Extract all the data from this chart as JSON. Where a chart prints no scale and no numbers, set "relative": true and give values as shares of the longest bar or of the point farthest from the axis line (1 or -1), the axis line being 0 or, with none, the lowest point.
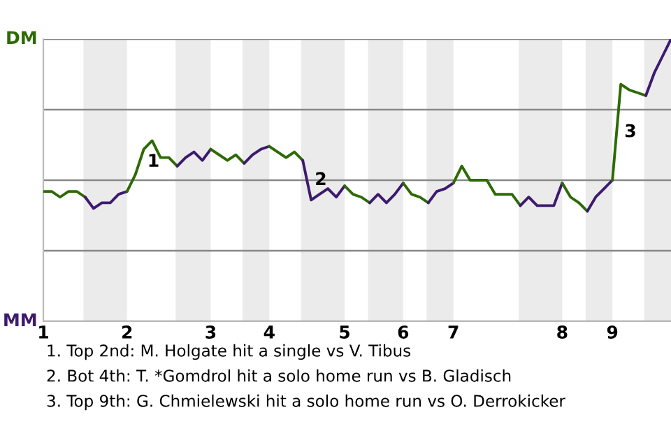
{
  "chart_data": {
    "type": "line",
    "relative": true,
    "categories": [
      "1",
      null,
      null,
      null,
      null,
      null,
      null,
      null,
      null,
      null,
      "2",
      null,
      null,
      null,
      null,
      null,
      null,
      null,
      null,
      null,
      "3",
      null,
      null,
      null,
      null,
      null,
      null,
      "4",
      null,
      null,
      null,
      null,
      null,
      null,
      null,
      null,
      "5",
      null,
      null,
      null,
      null,
      null,
      null,
      "6",
      null,
      null,
      null,
      null,
      null,
      "7",
      null,
      null,
      null,
      null,
      null,
      null,
      null,
      null,
      null,
      null,
      null,
      null,
      "8",
      null,
      null,
      null,
      null,
      null,
      "9",
      null,
      null,
      null,
      null,
      null,
      null,
      null
    ],
    "series": [
      {
        "color": "#2d6a04",
        "values": [
          0.46,
          0.46,
          0.44,
          0.46,
          0.46,
          0.44,
          null,
          null,
          null,
          null,
          null,
          null,
          null,
          null,
          null,
          null,
          null,
          null,
          null,
          null,
          null,
          null,
          null,
          null,
          null,
          null,
          null,
          null,
          null,
          null,
          null,
          null,
          null,
          null,
          null,
          null,
          null,
          null,
          null,
          null,
          null,
          null,
          null,
          null,
          null,
          null,
          null,
          null,
          null,
          null,
          null,
          null,
          null,
          null,
          null,
          null,
          null,
          null,
          null,
          null,
          null,
          null,
          null,
          null,
          null,
          null,
          null,
          null,
          null,
          null,
          null,
          null,
          null,
          null,
          null,
          null
        ]
      },
      {
        "color": "#3d1a6e",
        "values": [
          null,
          null,
          null,
          null,
          null,
          0.44,
          0.4,
          0.42,
          0.42,
          0.45,
          0.46,
          null,
          null,
          null,
          null,
          null,
          null,
          null,
          null,
          null,
          null,
          null,
          null,
          null,
          null,
          null,
          null,
          null,
          null,
          null,
          null,
          null,
          null,
          null,
          null,
          null,
          null,
          null,
          null,
          null,
          null,
          null,
          null,
          null,
          null,
          null,
          null,
          null,
          null,
          null,
          null,
          null,
          null,
          null,
          null,
          null,
          null,
          null,
          null,
          null,
          null,
          null,
          null,
          null,
          null,
          null,
          null,
          null,
          null,
          null,
          null,
          null,
          null,
          null,
          null,
          null
        ]
      },
      {
        "color": "#2d6a04",
        "values": [
          null,
          null,
          null,
          null,
          null,
          null,
          null,
          null,
          null,
          null,
          0.46,
          0.52,
          0.61,
          0.64,
          0.58,
          0.58,
          0.55,
          null,
          null,
          null,
          null,
          null,
          null,
          null,
          null,
          null,
          null,
          null,
          null,
          null,
          null,
          null,
          null,
          null,
          null,
          null,
          null,
          null,
          null,
          null,
          null,
          null,
          null,
          null,
          null,
          null,
          null,
          null,
          null,
          null,
          null,
          null,
          null,
          null,
          null,
          null,
          null,
          null,
          null,
          null,
          null,
          null,
          null,
          null,
          null,
          null,
          null,
          null,
          null,
          null,
          null,
          null,
          null,
          null,
          null,
          null
        ]
      },
      {
        "color": "#3d1a6e",
        "values": [
          null,
          null,
          null,
          null,
          null,
          null,
          null,
          null,
          null,
          null,
          null,
          null,
          null,
          null,
          null,
          null,
          0.55,
          0.58,
          0.6,
          0.57,
          0.61,
          null,
          null,
          null,
          null,
          null,
          null,
          null,
          null,
          null,
          null,
          null,
          null,
          null,
          null,
          null,
          null,
          null,
          null,
          null,
          null,
          null,
          null,
          null,
          null,
          null,
          null,
          null,
          null,
          null,
          null,
          null,
          null,
          null,
          null,
          null,
          null,
          null,
          null,
          null,
          null,
          null,
          null,
          null,
          null,
          null,
          null,
          null,
          null,
          null,
          null,
          null,
          null,
          null,
          null,
          null
        ]
      },
      {
        "color": "#2d6a04",
        "values": [
          null,
          null,
          null,
          null,
          null,
          null,
          null,
          null,
          null,
          null,
          null,
          null,
          null,
          null,
          null,
          null,
          null,
          null,
          null,
          null,
          0.61,
          0.59,
          0.57,
          0.59,
          0.56,
          null,
          null,
          null,
          null,
          null,
          null,
          null,
          null,
          null,
          null,
          null,
          null,
          null,
          null,
          null,
          null,
          null,
          null,
          null,
          null,
          null,
          null,
          null,
          null,
          null,
          null,
          null,
          null,
          null,
          null,
          null,
          null,
          null,
          null,
          null,
          null,
          null,
          null,
          null,
          null,
          null,
          null,
          null,
          null,
          null,
          null,
          null,
          null,
          null,
          null,
          null
        ]
      },
      {
        "color": "#3d1a6e",
        "values": [
          null,
          null,
          null,
          null,
          null,
          null,
          null,
          null,
          null,
          null,
          null,
          null,
          null,
          null,
          null,
          null,
          null,
          null,
          null,
          null,
          null,
          null,
          null,
          null,
          0.56,
          0.59,
          0.61,
          0.62,
          null,
          null,
          null,
          null,
          null,
          null,
          null,
          null,
          null,
          null,
          null,
          null,
          null,
          null,
          null,
          null,
          null,
          null,
          null,
          null,
          null,
          null,
          null,
          null,
          null,
          null,
          null,
          null,
          null,
          null,
          null,
          null,
          null,
          null,
          null,
          null,
          null,
          null,
          null,
          null,
          null,
          null,
          null,
          null,
          null,
          null,
          null,
          null
        ]
      },
      {
        "color": "#2d6a04",
        "values": [
          null,
          null,
          null,
          null,
          null,
          null,
          null,
          null,
          null,
          null,
          null,
          null,
          null,
          null,
          null,
          null,
          null,
          null,
          null,
          null,
          null,
          null,
          null,
          null,
          null,
          null,
          null,
          0.62,
          0.6,
          0.58,
          0.6,
          0.57,
          null,
          null,
          null,
          null,
          null,
          null,
          null,
          null,
          null,
          null,
          null,
          null,
          null,
          null,
          null,
          null,
          null,
          null,
          null,
          null,
          null,
          null,
          null,
          null,
          null,
          null,
          null,
          null,
          null,
          null,
          null,
          null,
          null,
          null,
          null,
          null,
          null,
          null,
          null,
          null,
          null,
          null,
          null,
          null
        ]
      },
      {
        "color": "#3d1a6e",
        "values": [
          null,
          null,
          null,
          null,
          null,
          null,
          null,
          null,
          null,
          null,
          null,
          null,
          null,
          null,
          null,
          null,
          null,
          null,
          null,
          null,
          null,
          null,
          null,
          null,
          null,
          null,
          null,
          null,
          null,
          null,
          null,
          0.57,
          0.43,
          0.45,
          0.47,
          0.44,
          0.48,
          null,
          null,
          null,
          null,
          null,
          null,
          null,
          null,
          null,
          null,
          null,
          null,
          null,
          null,
          null,
          null,
          null,
          null,
          null,
          null,
          null,
          null,
          null,
          null,
          null,
          null,
          null,
          null,
          null,
          null,
          null,
          null,
          null,
          null,
          null,
          null,
          null,
          null,
          null
        ]
      },
      {
        "color": "#2d6a04",
        "values": [
          null,
          null,
          null,
          null,
          null,
          null,
          null,
          null,
          null,
          null,
          null,
          null,
          null,
          null,
          null,
          null,
          null,
          null,
          null,
          null,
          null,
          null,
          null,
          null,
          null,
          null,
          null,
          null,
          null,
          null,
          null,
          null,
          null,
          null,
          null,
          null,
          0.48,
          0.45,
          0.44,
          0.42,
          null,
          null,
          null,
          null,
          null,
          null,
          null,
          null,
          null,
          null,
          null,
          null,
          null,
          null,
          null,
          null,
          null,
          null,
          null,
          null,
          null,
          null,
          null,
          null,
          null,
          null,
          null,
          null,
          null,
          null,
          null,
          null,
          null,
          null,
          null,
          null
        ]
      },
      {
        "color": "#3d1a6e",
        "values": [
          null,
          null,
          null,
          null,
          null,
          null,
          null,
          null,
          null,
          null,
          null,
          null,
          null,
          null,
          null,
          null,
          null,
          null,
          null,
          null,
          null,
          null,
          null,
          null,
          null,
          null,
          null,
          null,
          null,
          null,
          null,
          null,
          null,
          null,
          null,
          null,
          null,
          null,
          null,
          0.42,
          0.45,
          0.42,
          0.45,
          0.49,
          null,
          null,
          null,
          null,
          null,
          null,
          null,
          null,
          null,
          null,
          null,
          null,
          null,
          null,
          null,
          null,
          null,
          null,
          null,
          null,
          null,
          null,
          null,
          null,
          null,
          null,
          null,
          null,
          null,
          null,
          null,
          null
        ]
      },
      {
        "color": "#2d6a04",
        "values": [
          null,
          null,
          null,
          null,
          null,
          null,
          null,
          null,
          null,
          null,
          null,
          null,
          null,
          null,
          null,
          null,
          null,
          null,
          null,
          null,
          null,
          null,
          null,
          null,
          null,
          null,
          null,
          null,
          null,
          null,
          null,
          null,
          null,
          null,
          null,
          null,
          null,
          null,
          null,
          null,
          null,
          null,
          null,
          0.49,
          0.45,
          0.44,
          0.42,
          null,
          null,
          null,
          null,
          null,
          null,
          null,
          null,
          null,
          null,
          null,
          null,
          null,
          null,
          null,
          null,
          null,
          null,
          null,
          null,
          null,
          null,
          null,
          null,
          null,
          null,
          null,
          null,
          null
        ]
      },
      {
        "color": "#3d1a6e",
        "values": [
          null,
          null,
          null,
          null,
          null,
          null,
          null,
          null,
          null,
          null,
          null,
          null,
          null,
          null,
          null,
          null,
          null,
          null,
          null,
          null,
          null,
          null,
          null,
          null,
          null,
          null,
          null,
          null,
          null,
          null,
          null,
          null,
          null,
          null,
          null,
          null,
          null,
          null,
          null,
          null,
          null,
          null,
          null,
          null,
          null,
          null,
          0.42,
          0.46,
          0.47,
          0.49,
          null,
          null,
          null,
          null,
          null,
          null,
          null,
          null,
          null,
          null,
          null,
          null,
          null,
          null,
          null,
          null,
          null,
          null,
          null,
          null,
          null,
          null,
          null,
          null,
          null,
          null
        ]
      },
      {
        "color": "#2d6a04",
        "values": [
          null,
          null,
          null,
          null,
          null,
          null,
          null,
          null,
          null,
          null,
          null,
          null,
          null,
          null,
          null,
          null,
          null,
          null,
          null,
          null,
          null,
          null,
          null,
          null,
          null,
          null,
          null,
          null,
          null,
          null,
          null,
          null,
          null,
          null,
          null,
          null,
          null,
          null,
          null,
          null,
          null,
          null,
          null,
          null,
          null,
          null,
          null,
          null,
          null,
          0.49,
          0.55,
          0.5,
          0.5,
          0.5,
          0.45,
          0.45,
          0.45,
          0.41,
          null,
          null,
          null,
          null,
          null,
          null,
          null,
          null,
          null,
          null,
          null,
          null,
          null,
          null,
          null,
          null,
          null,
          null
        ]
      },
      {
        "color": "#3d1a6e",
        "values": [
          null,
          null,
          null,
          null,
          null,
          null,
          null,
          null,
          null,
          null,
          null,
          null,
          null,
          null,
          null,
          null,
          null,
          null,
          null,
          null,
          null,
          null,
          null,
          null,
          null,
          null,
          null,
          null,
          null,
          null,
          null,
          null,
          null,
          null,
          null,
          null,
          null,
          null,
          null,
          null,
          null,
          null,
          null,
          null,
          null,
          null,
          null,
          null,
          null,
          null,
          null,
          null,
          null,
          null,
          null,
          null,
          null,
          0.41,
          0.44,
          0.41,
          0.41,
          0.41,
          0.49,
          null,
          null,
          null,
          null,
          null,
          null,
          null,
          null,
          null,
          null,
          null,
          null,
          null
        ]
      },
      {
        "color": "#2d6a04",
        "values": [
          null,
          null,
          null,
          null,
          null,
          null,
          null,
          null,
          null,
          null,
          null,
          null,
          null,
          null,
          null,
          null,
          null,
          null,
          null,
          null,
          null,
          null,
          null,
          null,
          null,
          null,
          null,
          null,
          null,
          null,
          null,
          null,
          null,
          null,
          null,
          null,
          null,
          null,
          null,
          null,
          null,
          null,
          null,
          null,
          null,
          null,
          null,
          null,
          null,
          null,
          null,
          null,
          null,
          null,
          null,
          null,
          null,
          null,
          null,
          null,
          null,
          null,
          0.49,
          0.44,
          0.42,
          0.39,
          null,
          null,
          null,
          null,
          null,
          null,
          null,
          null,
          null,
          null
        ]
      },
      {
        "color": "#3d1a6e",
        "values": [
          null,
          null,
          null,
          null,
          null,
          null,
          null,
          null,
          null,
          null,
          null,
          null,
          null,
          null,
          null,
          null,
          null,
          null,
          null,
          null,
          null,
          null,
          null,
          null,
          null,
          null,
          null,
          null,
          null,
          null,
          null,
          null,
          null,
          null,
          null,
          null,
          null,
          null,
          null,
          null,
          null,
          null,
          null,
          null,
          null,
          null,
          null,
          null,
          null,
          null,
          null,
          null,
          null,
          null,
          null,
          null,
          null,
          null,
          null,
          null,
          null,
          null,
          null,
          null,
          null,
          0.39,
          0.44,
          0.47,
          0.5,
          null,
          null,
          null,
          null,
          null,
          null,
          null
        ]
      },
      {
        "color": "#2d6a04",
        "values": [
          null,
          null,
          null,
          null,
          null,
          null,
          null,
          null,
          null,
          null,
          null,
          null,
          null,
          null,
          null,
          null,
          null,
          null,
          null,
          null,
          null,
          null,
          null,
          null,
          null,
          null,
          null,
          null,
          null,
          null,
          null,
          null,
          null,
          null,
          null,
          null,
          null,
          null,
          null,
          null,
          null,
          null,
          null,
          null,
          null,
          null,
          null,
          null,
          null,
          null,
          null,
          null,
          null,
          null,
          null,
          null,
          null,
          null,
          null,
          null,
          null,
          null,
          null,
          null,
          null,
          null,
          null,
          null,
          0.5,
          0.84,
          0.82,
          0.81,
          0.8,
          null,
          null,
          null
        ]
      },
      {
        "color": "#3d1a6e",
        "values": [
          null,
          null,
          null,
          null,
          null,
          null,
          null,
          null,
          null,
          null,
          null,
          null,
          null,
          null,
          null,
          null,
          null,
          null,
          null,
          null,
          null,
          null,
          null,
          null,
          null,
          null,
          null,
          null,
          null,
          null,
          null,
          null,
          null,
          null,
          null,
          null,
          null,
          null,
          null,
          null,
          null,
          null,
          null,
          null,
          null,
          null,
          null,
          null,
          null,
          null,
          null,
          null,
          null,
          null,
          null,
          null,
          null,
          null,
          null,
          null,
          null,
          null,
          null,
          null,
          null,
          null,
          null,
          null,
          null,
          null,
          null,
          null,
          0.8,
          0.88,
          0.94,
          1
        ]
      }
    ],
    "grid": "y",
    "annotations": [
      "DM",
      "MM",
      "1",
      "2",
      "3",
      "1. Top 2nd: M. Holgate hit a single vs V. Tibus",
      "2. Bot 4th: T. *Gomdrol hit a solo home run vs B. Gladisch",
      "3. Top 9th: G. Chmielewski hit a solo home run vs O. Derrokicker"
    ]
  }
}
